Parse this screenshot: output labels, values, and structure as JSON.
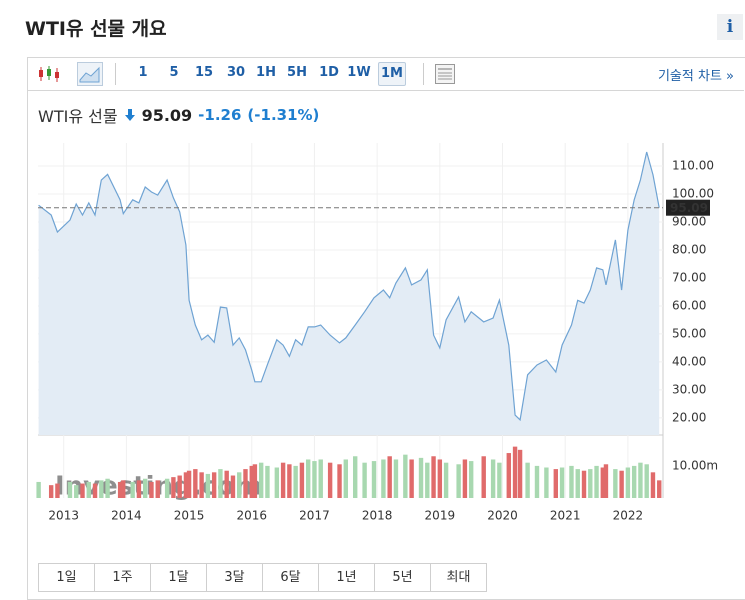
{
  "header": {
    "title": "WTI유 선물 개요",
    "info": "i"
  },
  "toolbar": {
    "intervals": [
      "1",
      "5",
      "15",
      "30",
      "1H",
      "5H",
      "1D",
      "1W",
      "1M"
    ],
    "active": "1M",
    "link": "기술적 차트 »"
  },
  "quote": {
    "name": "WTI유 선물",
    "price": "95.09",
    "change": "-1.26",
    "change_pct": "(-1.31%)"
  },
  "range_buttons": [
    "1일",
    "1주",
    "1달",
    "3달",
    "6달",
    "1년",
    "5년",
    "최대"
  ],
  "chart_data": {
    "type": "area",
    "watermark": "Investing.com",
    "color": "#6fa3d3",
    "fill": "#e3ecf5",
    "x": [
      2012.6,
      2012.8,
      2012.9,
      2013.1,
      2013.2,
      2013.3,
      2013.4,
      2013.5,
      2013.6,
      2013.7,
      2013.9,
      2013.95,
      2014.1,
      2014.2,
      2014.3,
      2014.4,
      2014.5,
      2014.65,
      2014.75,
      2014.85,
      2014.95,
      2015.0,
      2015.1,
      2015.2,
      2015.3,
      2015.4,
      2015.5,
      2015.6,
      2015.7,
      2015.8,
      2015.9,
      2016.0,
      2016.05,
      2016.15,
      2016.25,
      2016.4,
      2016.5,
      2016.6,
      2016.7,
      2016.8,
      2016.9,
      2017.0,
      2017.1,
      2017.25,
      2017.4,
      2017.5,
      2017.65,
      2017.8,
      2017.95,
      2018.1,
      2018.2,
      2018.3,
      2018.45,
      2018.55,
      2018.7,
      2018.8,
      2018.9,
      2019.0,
      2019.1,
      2019.3,
      2019.4,
      2019.5,
      2019.7,
      2019.85,
      2019.95,
      2020.1,
      2020.2,
      2020.28,
      2020.4,
      2020.55,
      2020.7,
      2020.85,
      2020.95,
      2021.1,
      2021.2,
      2021.3,
      2021.4,
      2021.5,
      2021.6,
      2021.65,
      2021.8,
      2021.9,
      2022.0,
      2022.1,
      2022.2,
      2022.3,
      2022.4,
      2022.5
    ],
    "values": [
      96,
      92.5,
      86.4,
      90.7,
      96.4,
      92.5,
      96.8,
      92.5,
      105,
      107,
      97.9,
      93,
      97.9,
      96.8,
      102.5,
      100.7,
      99.6,
      105,
      98.6,
      93.6,
      81.8,
      62,
      53.2,
      47.9,
      49.6,
      47,
      59.6,
      59.3,
      46,
      48.6,
      44.3,
      37,
      32.9,
      32.9,
      39,
      47.9,
      46,
      42,
      47.9,
      46,
      52.5,
      52.5,
      53.2,
      49.6,
      46.8,
      48.6,
      53.2,
      57.9,
      62.9,
      65.7,
      62.9,
      68.2,
      73.6,
      67.5,
      69.3,
      72.9,
      49.6,
      45,
      55,
      63.2,
      54.3,
      57.9,
      54.3,
      55.7,
      62.1,
      46,
      21,
      19.3,
      35.4,
      38.9,
      40.7,
      36.4,
      46,
      53.2,
      62,
      61,
      65.7,
      73.6,
      72.9,
      67.5,
      83.6,
      65.7,
      87.1,
      97.9,
      105,
      115,
      106.8,
      95.09
    ],
    "volume": [
      5,
      4,
      4.5,
      5,
      4,
      4.5,
      5,
      4.5,
      5.5,
      6,
      5,
      5.5,
      5,
      5.5,
      6,
      5,
      5.5,
      6,
      6.5,
      7,
      8,
      8.5,
      9,
      8,
      7.5,
      8,
      9,
      8.5,
      7,
      8,
      9,
      10,
      10.5,
      11,
      10,
      9.5,
      11,
      10.5,
      10,
      11,
      12,
      11.5,
      12,
      11,
      10.5,
      12,
      13,
      11,
      11.5,
      12,
      13,
      12,
      13.5,
      12,
      12.5,
      11,
      13,
      12,
      11,
      10.5,
      12,
      11.5,
      13,
      12,
      11,
      14,
      16,
      15,
      11,
      10,
      9.5,
      9,
      9.5,
      10,
      9,
      8.5,
      9,
      10,
      9.5,
      10.5,
      9,
      8.5,
      9.5,
      10,
      11,
      10.5,
      8,
      5.5
    ],
    "last_value": 95.09,
    "xlim": [
      2012.59,
      2022.56
    ],
    "xticks": [
      2013,
      2014,
      2015,
      2016,
      2017,
      2018,
      2019,
      2020,
      2021,
      2022
    ],
    "ylim": [
      13.9,
      118.2
    ],
    "yticks": [
      {
        "value": 20,
        "label": "20.00"
      },
      {
        "value": 30,
        "label": "30.00"
      },
      {
        "value": 40,
        "label": "40.00"
      },
      {
        "value": 50,
        "label": "50.00"
      },
      {
        "value": 60,
        "label": "60.00"
      },
      {
        "value": 70,
        "label": "70.00"
      },
      {
        "value": 80,
        "label": "80.00"
      },
      {
        "value": 90,
        "label": "90.00"
      },
      {
        "value": 100,
        "label": "100.00"
      },
      {
        "value": 110,
        "label": "110.00"
      }
    ],
    "volume_lim": [
      0,
      19
    ],
    "volume_ticks": [
      {
        "value": 10,
        "label": "10.00m"
      }
    ],
    "up_color": "#a8d8b0",
    "down_color": "#e06b6b",
    "grid": true
  }
}
